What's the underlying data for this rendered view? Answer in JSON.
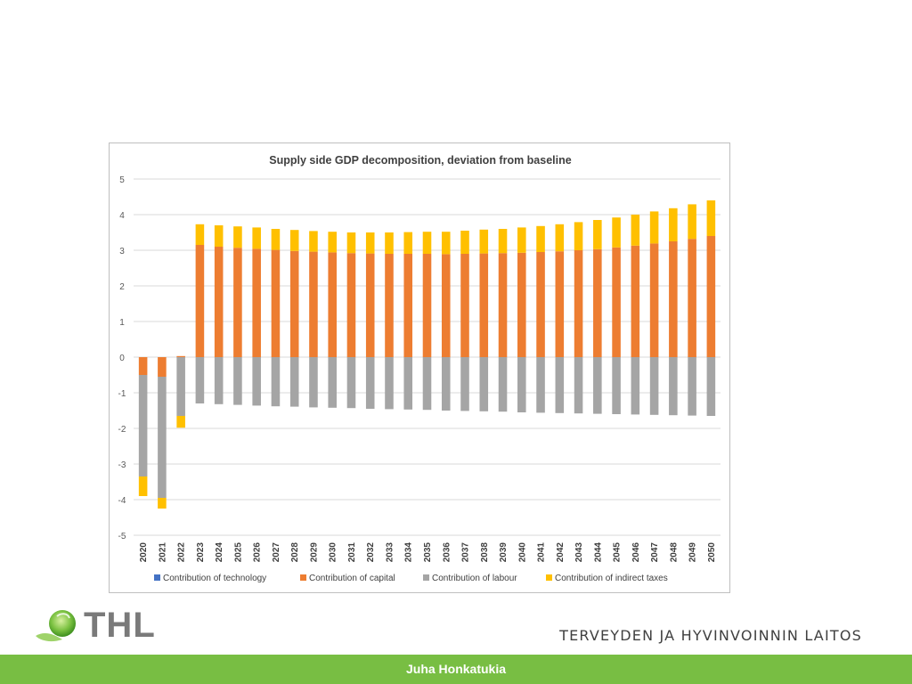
{
  "chart_data": {
    "type": "bar",
    "stacked": true,
    "title": "Supply side GDP decomposition, deviation from baseline",
    "xlabel": "",
    "ylabel": "",
    "ylim": [
      -5,
      5
    ],
    "yticks": [
      5,
      4,
      3,
      2,
      1,
      0,
      -1,
      -2,
      -3,
      -4,
      -5
    ],
    "grid": true,
    "legend_position": "bottom",
    "categories": [
      "2020",
      "2021",
      "2022",
      "2023",
      "2024",
      "2025",
      "2026",
      "2027",
      "2028",
      "2029",
      "2030",
      "2031",
      "2032",
      "2033",
      "2034",
      "2035",
      "2036",
      "2037",
      "2038",
      "2039",
      "2040",
      "2041",
      "2042",
      "2043",
      "2044",
      "2045",
      "2046",
      "2047",
      "2048",
      "2049",
      "2050"
    ],
    "series": [
      {
        "name": "Contribution of technology",
        "color": "#4472c4",
        "values": [
          0,
          0,
          0,
          0,
          0,
          0,
          0,
          0,
          0,
          0,
          0,
          0,
          0,
          0,
          0,
          0,
          0,
          0,
          0,
          0,
          0,
          0,
          0,
          0,
          0,
          0,
          0,
          0,
          0,
          0,
          0
        ]
      },
      {
        "name": "Contribution of capital",
        "color": "#ed7d31",
        "values": [
          -0.5,
          -0.55,
          0.03,
          3.15,
          3.1,
          3.07,
          3.04,
          3.01,
          2.98,
          2.96,
          2.94,
          2.92,
          2.91,
          2.9,
          2.9,
          2.9,
          2.89,
          2.9,
          2.91,
          2.92,
          2.93,
          2.95,
          2.97,
          3.0,
          3.03,
          3.08,
          3.13,
          3.19,
          3.25,
          3.32,
          3.4
        ]
      },
      {
        "name": "Contribution of labour",
        "color": "#a5a5a5",
        "values": [
          -2.85,
          -3.4,
          -1.65,
          -1.3,
          -1.32,
          -1.34,
          -1.36,
          -1.38,
          -1.39,
          -1.41,
          -1.42,
          -1.43,
          -1.45,
          -1.46,
          -1.47,
          -1.48,
          -1.5,
          -1.51,
          -1.52,
          -1.53,
          -1.55,
          -1.56,
          -1.57,
          -1.58,
          -1.59,
          -1.6,
          -1.61,
          -1.62,
          -1.63,
          -1.64,
          -1.65
        ]
      },
      {
        "name": "Contribution of indirect taxes",
        "color": "#ffc000",
        "values": [
          -0.55,
          -0.3,
          -0.33,
          0.58,
          0.6,
          0.6,
          0.6,
          0.59,
          0.59,
          0.58,
          0.58,
          0.58,
          0.59,
          0.6,
          0.61,
          0.62,
          0.63,
          0.65,
          0.67,
          0.68,
          0.71,
          0.73,
          0.76,
          0.79,
          0.82,
          0.84,
          0.87,
          0.9,
          0.93,
          0.97,
          1.0
        ]
      }
    ]
  },
  "branding": {
    "logo_text": "THL",
    "org_name": "TERVEYDEN JA HYVINVOINNIN LAITOS",
    "author": "Juha Honkatukia",
    "accent_color": "#78be43"
  }
}
